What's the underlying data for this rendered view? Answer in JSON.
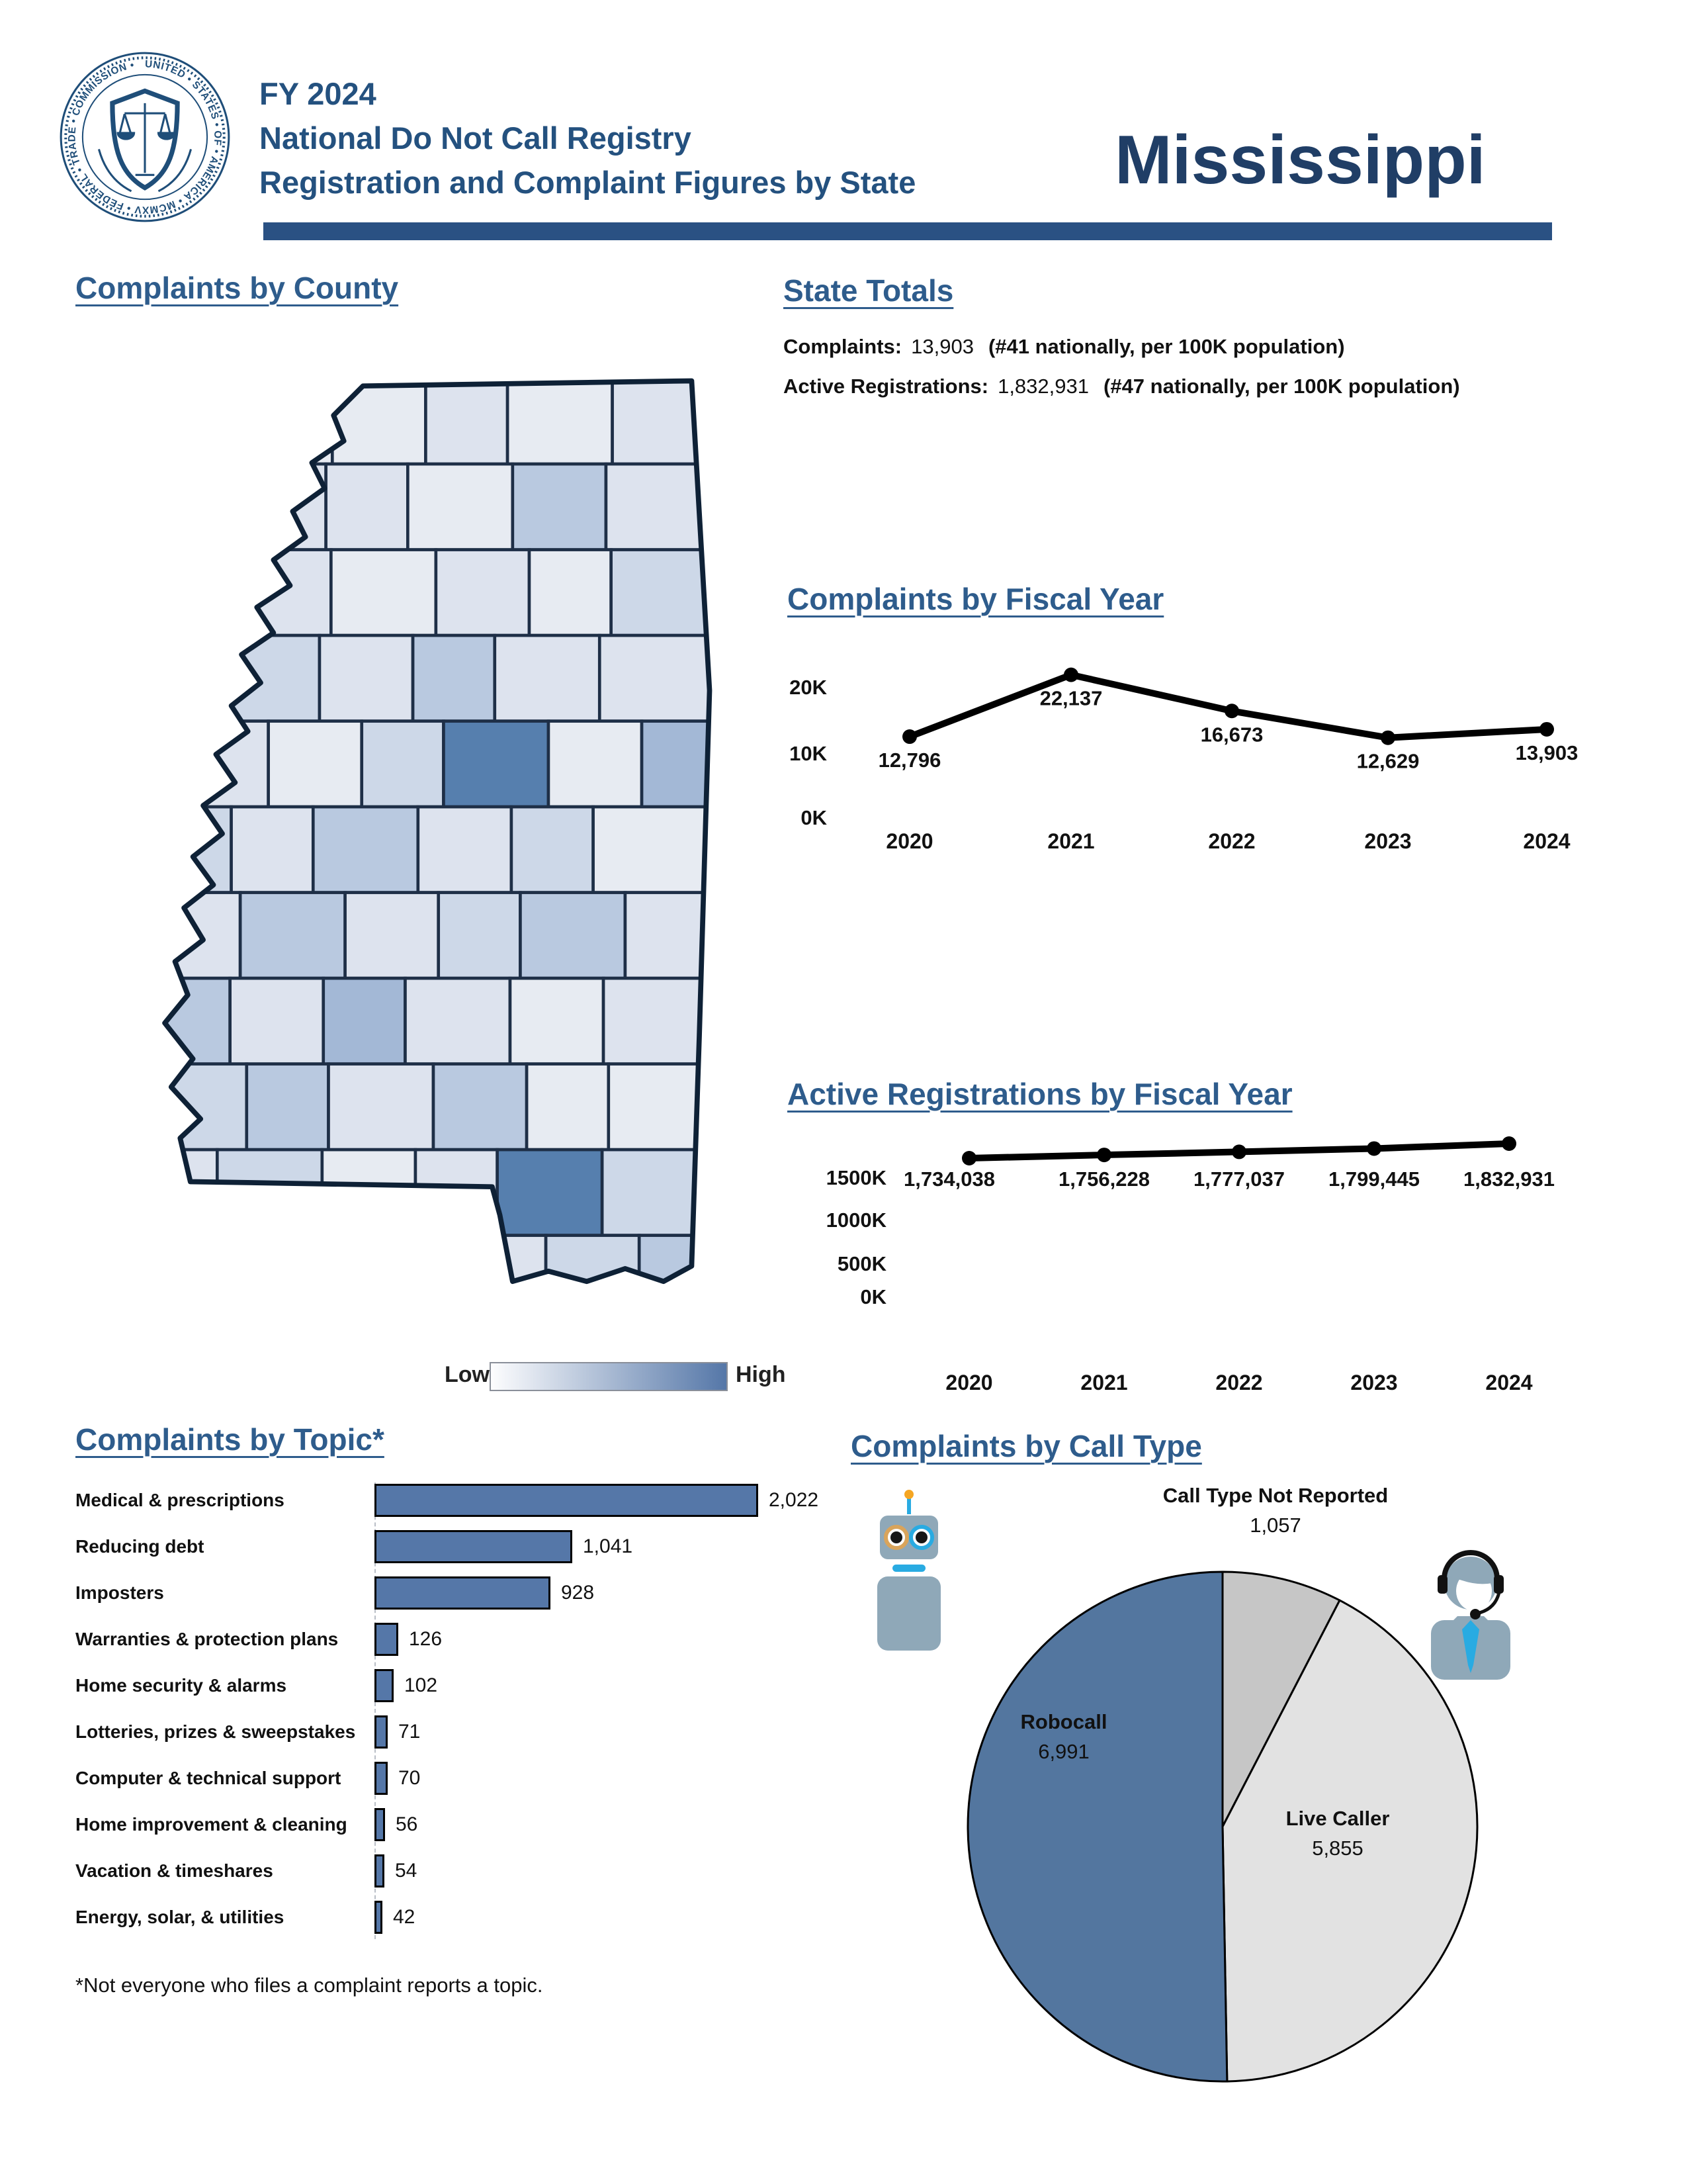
{
  "header": {
    "fiscal_year": "FY 2024",
    "title_line_2": "National Do Not Call Registry",
    "title_line_3": "Registration and Complaint Figures by State",
    "state_name": "Mississippi",
    "seal_ring_text": "UNITED • STATES • OF • AMERICA • MCMXV • FEDERAL • TRADE • COMMISSION •",
    "accent_bar_color": "#2A5183"
  },
  "sections": {
    "map": {
      "title": "Complaints by County"
    },
    "totals": {
      "title": "State Totals",
      "rows": [
        {
          "label": "Complaints:",
          "value": "13,903",
          "note": "(#41 nationally, per 100K population)"
        },
        {
          "label": "Active Registrations:",
          "value": "1,832,931",
          "note": "(#47 nationally, per 100K population)"
        }
      ]
    },
    "topic": {
      "title": "Complaints by Topic*",
      "footnote": "*Not everyone who files a complaint reports a topic."
    },
    "call_type": {
      "title": "Complaints by Call Type"
    }
  },
  "map_legend": {
    "low": "Low",
    "high": "High",
    "gradient_start": "#FDFDFE",
    "gradient_end": "#5577A8"
  },
  "choropleth": {
    "palette": [
      "#F2F3F5",
      "#E7EBF2",
      "#DDE3EE",
      "#CDD8E8",
      "#B9C9E0",
      "#A3B8D6",
      "#7D9CC4",
      "#567FAE"
    ],
    "grid": [
      [
        2,
        1,
        1,
        2,
        1,
        2
      ],
      [
        1,
        2,
        2,
        1,
        4,
        2
      ],
      [
        3,
        2,
        1,
        2,
        1,
        3
      ],
      [
        1,
        3,
        2,
        4,
        2,
        2
      ],
      [
        2,
        1,
        3,
        7,
        1,
        5
      ],
      [
        3,
        2,
        4,
        2,
        3,
        1
      ],
      [
        2,
        4,
        2,
        3,
        4,
        2
      ],
      [
        4,
        2,
        5,
        2,
        1,
        2
      ],
      [
        3,
        4,
        2,
        4,
        1,
        1
      ],
      [
        2,
        3,
        1,
        2,
        7,
        3
      ],
      [
        1,
        2,
        3,
        2,
        3,
        4
      ]
    ]
  },
  "chart_data": [
    {
      "type": "line",
      "title": "Complaints by Fiscal Year",
      "x": [
        "2020",
        "2021",
        "2022",
        "2023",
        "2024"
      ],
      "values": [
        12796,
        22137,
        16673,
        12629,
        13903
      ],
      "value_labels": [
        "12,796",
        "22,137",
        "16,673",
        "12,629",
        "13,903"
      ],
      "yticks": [
        "20K",
        "10K",
        "0K"
      ],
      "ylim": [
        0,
        28000
      ],
      "grid": false,
      "line_color": "#000000"
    },
    {
      "type": "line",
      "title": "Active Registrations by Fiscal Year",
      "x": [
        "2020",
        "2021",
        "2022",
        "2023",
        "2024"
      ],
      "values": [
        1734038,
        1756228,
        1777037,
        1799445,
        1832931
      ],
      "value_labels": [
        "1,734,038",
        "1,756,228",
        "1,777,037",
        "1,799,445",
        "1,832,931"
      ],
      "yticks": [
        "1500K",
        "1000K",
        "500K",
        "0K"
      ],
      "ylim": [
        0,
        1900000
      ],
      "grid": false,
      "line_color": "#000000"
    },
    {
      "type": "bar",
      "title": "Complaints by Topic*",
      "categories": [
        "Medical & prescriptions",
        "Reducing debt",
        "Imposters",
        "Warranties & protection plans",
        "Home security & alarms",
        "Lotteries, prizes & sweepstakes",
        "Computer & technical support",
        "Home improvement & cleaning",
        "Vacation & timeshares",
        "Energy, solar, & utilities"
      ],
      "values": [
        2022,
        1041,
        928,
        126,
        102,
        71,
        70,
        56,
        54,
        42
      ],
      "value_labels": [
        "2,022",
        "1,041",
        "928",
        "126",
        "102",
        "71",
        "70",
        "56",
        "54",
        "42"
      ],
      "bar_color": "#5577A8",
      "footnote": "*Not everyone who files a complaint reports a topic."
    },
    {
      "type": "pie",
      "title": "Complaints by Call Type",
      "start": "12 o'clock",
      "direction": "clockwise",
      "slices": [
        {
          "label": "Call Type Not Reported",
          "value": 1057,
          "value_label": "1,057",
          "color": "#C6C6C6"
        },
        {
          "label": "Live Caller",
          "value": 5855,
          "value_label": "5,855",
          "color": "#E2E2E2"
        },
        {
          "label": "Robocall",
          "value": 6991,
          "value_label": "6,991",
          "color": "#53769F"
        }
      ]
    }
  ]
}
